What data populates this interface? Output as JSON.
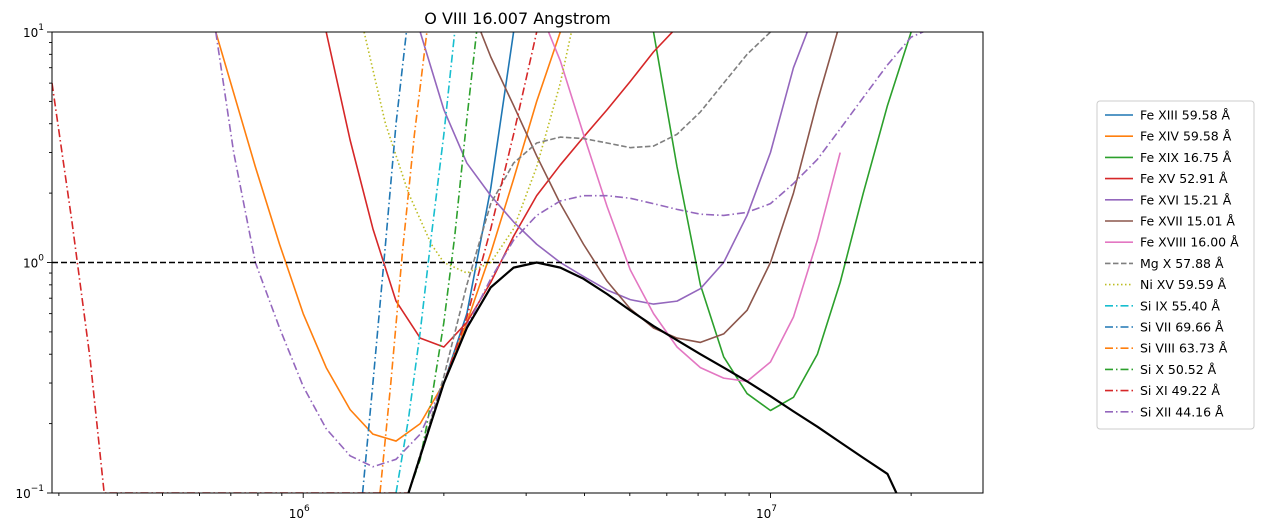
{
  "chart_data": {
    "type": "line",
    "title": "O VIII 16.007 Angstrom",
    "xlabel": "",
    "ylabel": "",
    "x_scale": "log",
    "y_scale": "log",
    "xlim": [
      290000,
      28500000
    ],
    "ylim": [
      0.1,
      10
    ],
    "grid": false,
    "legend_position": "outside-right",
    "x_ticks": [
      {
        "value": 1000000,
        "label": "10",
        "exp": "6"
      },
      {
        "value": 10000000,
        "label": "10",
        "exp": "7"
      }
    ],
    "y_ticks": [
      {
        "value": 0.1,
        "label": "10",
        "exp": "−1"
      },
      {
        "value": 1,
        "label": "10",
        "exp": "0"
      },
      {
        "value": 10,
        "label": "10",
        "exp": "1"
      }
    ],
    "reference_line": {
      "y": 1,
      "style": "dashed",
      "color": "#000000"
    },
    "envelope": {
      "color": "#000000",
      "x": [
        1680000,
        2000000,
        2240000,
        2520000,
        2820000,
        3160000,
        3550000,
        3980000,
        4470000,
        5010000,
        5620000,
        6310000,
        7080000,
        7940000,
        8910000,
        10000000,
        11200000,
        12600000,
        14100000,
        15800000,
        17800000,
        18600000
      ],
      "values": [
        0.1,
        0.3,
        0.52,
        0.78,
        0.95,
        1.0,
        0.95,
        0.85,
        0.73,
        0.62,
        0.53,
        0.46,
        0.4,
        0.35,
        0.305,
        0.263,
        0.226,
        0.194,
        0.166,
        0.142,
        0.121,
        0.1
      ]
    },
    "series": [
      {
        "name": "Fe XIII 59.58 Å",
        "color": "#1f77b4",
        "dash": "solid",
        "x": [
          1680000,
          2000000,
          2240000,
          2520000,
          2820000
        ],
        "values": [
          0.1,
          0.3,
          0.6,
          2.1,
          10
        ]
      },
      {
        "name": "Fe XIV 59.58 Å",
        "color": "#ff7f0e",
        "dash": "solid",
        "x": [
          650000,
          790000,
          890000,
          1000000,
          1120000,
          1260000,
          1410000,
          1580000,
          1780000,
          2000000,
          2240000,
          2520000,
          2820000,
          3160000,
          3550000
        ],
        "values": [
          10,
          2.6,
          1.2,
          0.6,
          0.35,
          0.23,
          0.18,
          0.168,
          0.2,
          0.3,
          0.55,
          1.1,
          2.3,
          5.0,
          10
        ]
      },
      {
        "name": "Fe XIX 16.75 Å",
        "color": "#2ca02c",
        "dash": "solid",
        "x": [
          5620000,
          6310000,
          7080000,
          7940000,
          8910000,
          10000000,
          11200000,
          12600000,
          14100000,
          15800000,
          17800000,
          20000000
        ],
        "values": [
          10,
          2.6,
          0.8,
          0.39,
          0.27,
          0.228,
          0.26,
          0.4,
          0.82,
          2.0,
          4.8,
          10
        ]
      },
      {
        "name": "Fe XV 52.91 Å",
        "color": "#d62728",
        "dash": "solid",
        "x": [
          1120000,
          1260000,
          1410000,
          1580000,
          1780000,
          2000000,
          2240000,
          2520000,
          2820000,
          3160000,
          3550000,
          3980000,
          4470000,
          5010000,
          5620000,
          6310000,
          7080000
        ],
        "values": [
          10,
          3.4,
          1.4,
          0.68,
          0.47,
          0.43,
          0.55,
          0.82,
          1.3,
          1.95,
          2.65,
          3.5,
          4.6,
          6.1,
          8.2,
          10.5,
          13
        ]
      },
      {
        "name": "Fe XVI 15.21 Å",
        "color": "#9467bd",
        "dash": "solid",
        "x": [
          1780000,
          2000000,
          2240000,
          2520000,
          2820000,
          3160000,
          3550000,
          3980000,
          4470000,
          5010000,
          5620000,
          6310000,
          7080000,
          7940000,
          8910000,
          10000000,
          11200000,
          12600000
        ],
        "values": [
          10,
          4.6,
          2.7,
          1.95,
          1.5,
          1.2,
          1.0,
          0.87,
          0.76,
          0.69,
          0.66,
          0.68,
          0.77,
          1.0,
          1.6,
          3.0,
          7.0,
          13
        ]
      },
      {
        "name": "Fe XVII 15.01 Å",
        "color": "#8c564b",
        "dash": "solid",
        "x": [
          2400000,
          2520000,
          2820000,
          3160000,
          3550000,
          3980000,
          4470000,
          5010000,
          5620000,
          6310000,
          7080000,
          7940000,
          8910000,
          10000000,
          11200000,
          12600000,
          14100000
        ],
        "values": [
          10,
          7.8,
          4.8,
          2.9,
          1.8,
          1.2,
          0.83,
          0.63,
          0.52,
          0.47,
          0.45,
          0.49,
          0.62,
          1.0,
          2.0,
          5.0,
          11
        ]
      },
      {
        "name": "Fe XVIII 16.00 Å",
        "color": "#e377c2",
        "dash": "solid",
        "x": [
          3350000,
          3550000,
          3980000,
          4470000,
          5010000,
          5620000,
          6310000,
          7080000,
          7940000,
          8910000,
          10000000,
          11200000,
          12600000,
          14100000
        ],
        "values": [
          10,
          7.5,
          3.6,
          1.75,
          0.93,
          0.6,
          0.43,
          0.35,
          0.315,
          0.305,
          0.37,
          0.58,
          1.25,
          3.0
        ]
      },
      {
        "name": "Mg X 57.88 Å",
        "color": "#7f7f7f",
        "dash": "dashed",
        "x": [
          1680000,
          2000000,
          2240000,
          2520000,
          2820000,
          3160000,
          3550000,
          3980000,
          4470000,
          5010000,
          5620000,
          6310000,
          7080000,
          7940000,
          8910000,
          10000000
        ],
        "values": [
          0.1,
          0.32,
          0.8,
          1.8,
          2.7,
          3.3,
          3.5,
          3.45,
          3.3,
          3.15,
          3.2,
          3.6,
          4.5,
          6.0,
          8.0,
          10
        ]
      },
      {
        "name": "Ni XV 59.59 Å",
        "color": "#bcbd22",
        "dash": "dotted",
        "x": [
          1350000,
          1500000,
          1680000,
          1880000,
          2000000,
          2240000,
          2520000,
          2820000,
          3160000,
          3550000,
          3750000
        ],
        "values": [
          10,
          4.0,
          2.0,
          1.2,
          1.0,
          0.9,
          1.0,
          1.4,
          2.6,
          6.0,
          10
        ]
      },
      {
        "name": "Si IX 55.40 Å",
        "color": "#17becf",
        "dash": "dashdot",
        "x": [
          1580000,
          1680000,
          1780000,
          1880000,
          2000000,
          2110000
        ],
        "values": [
          0.1,
          0.21,
          0.5,
          1.3,
          3.6,
          10
        ]
      },
      {
        "name": "Si VII 69.66 Å",
        "color": "#1f77b4",
        "dash": "dashdot",
        "x": [
          1340000,
          1410000,
          1500000,
          1580000,
          1680000
        ],
        "values": [
          0.1,
          0.3,
          1.2,
          4.0,
          12
        ]
      },
      {
        "name": "Si VIII 63.73 Å",
        "color": "#ff7f0e",
        "dash": "dashdot",
        "x": [
          1460000,
          1540000,
          1630000,
          1730000,
          1850000
        ],
        "values": [
          0.1,
          0.3,
          1.1,
          3.6,
          11
        ]
      },
      {
        "name": "Si X 50.52 Å",
        "color": "#2ca02c",
        "dash": "dashdot",
        "x": [
          1680000,
          1780000,
          1880000,
          2000000,
          2110000,
          2240000,
          2350000
        ],
        "values": [
          0.1,
          0.14,
          0.25,
          0.55,
          1.3,
          4.2,
          10
        ]
      },
      {
        "name": "Si XI 49.22 Å",
        "color": "#d62728",
        "dash": "dashdot",
        "x": [
          290000,
          320000,
          350000,
          375000,
          1680000,
          2000000,
          2240000,
          2520000,
          2820000,
          3160000
        ],
        "values": [
          6.0,
          1.5,
          0.38,
          0.1,
          0.1,
          0.3,
          0.58,
          1.4,
          3.6,
          10
        ]
      },
      {
        "name": "Si XII 44.16 Å",
        "color": "#9467bd",
        "dash": "dashdot",
        "x": [
          650000,
          710000,
          790000,
          890000,
          1000000,
          1120000,
          1260000,
          1410000,
          1580000,
          1780000,
          2000000,
          2240000,
          2520000,
          2820000,
          3160000,
          3550000,
          3980000,
          4470000,
          5010000,
          5620000,
          6310000,
          7080000,
          7940000,
          8910000,
          10000000,
          11200000,
          12600000,
          14100000,
          15800000,
          17800000,
          20000000,
          22400000
        ],
        "values": [
          10,
          3.0,
          1.0,
          0.52,
          0.29,
          0.19,
          0.145,
          0.13,
          0.14,
          0.18,
          0.3,
          0.53,
          0.85,
          1.25,
          1.6,
          1.85,
          1.95,
          1.95,
          1.9,
          1.8,
          1.7,
          1.62,
          1.6,
          1.65,
          1.8,
          2.2,
          2.8,
          3.8,
          5.2,
          7.2,
          9.5,
          10.5
        ]
      }
    ]
  }
}
